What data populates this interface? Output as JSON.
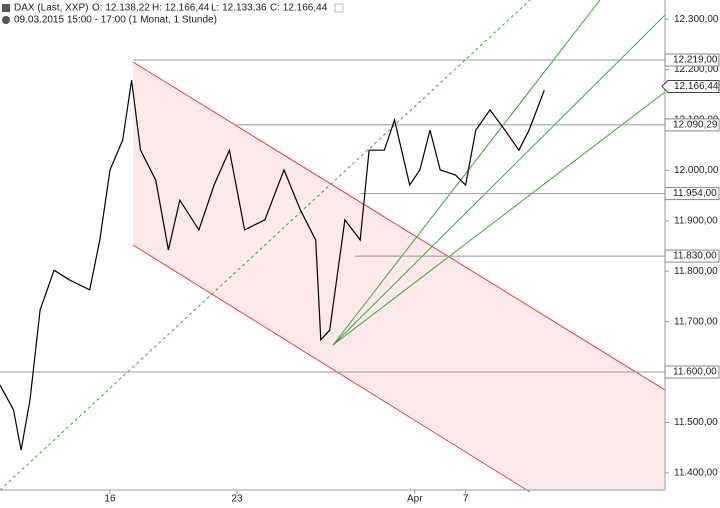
{
  "chart_data": {
    "type": "line",
    "title": "DAX (Last, XXP)",
    "quote": [
      "O: 12.138,22",
      "H: 12.166,44",
      "L: 12.133,36",
      "C: 12.166,44"
    ],
    "subtitle": "09.03.2015 15:00 - 17:00 (1 Monat, 1 Stunde)",
    "x": [
      -4.33,
      -3.8,
      -3.5,
      -3.15,
      -2.75,
      -2.2,
      -1.6,
      -0.8,
      -0.4,
      0,
      0.5,
      0.85,
      1.2,
      1.8,
      2.3,
      2.75,
      3.5,
      4.1,
      4.7,
      5.3,
      6.1,
      6.85,
      7.5,
      8.1,
      8.3,
      8.65,
      9.25,
      9.85,
      10.2,
      10.8,
      11.2,
      11.8,
      12.2,
      12.6,
      13,
      13.6,
      14,
      14.4,
      14.96,
      15.55,
      16.1,
      16.5,
      17.1
    ],
    "values": [
      11574,
      11525,
      11445,
      11545,
      11723,
      11802,
      11783,
      11763,
      11862,
      12001,
      12060,
      12179,
      12040,
      11981,
      11842,
      11941,
      11882,
      11971,
      12040,
      11882,
      11902,
      12001,
      11921,
      11862,
      11664,
      11683,
      11902,
      11862,
      12040,
      12040,
      12100,
      11971,
      12001,
      12080,
      12001,
      11991,
      11971,
      12080,
      12120,
      12080,
      12040,
      12080,
      12159
    ],
    "color": "#000000",
    "xlim": [
      -4.33,
      21.85
    ],
    "xticks": [
      {
        "value": 0,
        "label": "16"
      },
      {
        "value": 5,
        "label": "23"
      },
      {
        "value": 12,
        "label": "Apr"
      },
      {
        "value": 14,
        "label": "7"
      }
    ],
    "ylim": [
      11362,
      12338
    ],
    "yticks": [
      {
        "value": 12300,
        "label": "12.300,00"
      },
      {
        "value": 12200,
        "label": "12.200,00"
      },
      {
        "value": 12100,
        "label": "12.100,00"
      },
      {
        "value": 12000,
        "label": "12.000,00"
      },
      {
        "value": 11900,
        "label": "11.900,00"
      },
      {
        "value": 11800,
        "label": "11.800,00"
      },
      {
        "value": 11700,
        "label": "11.700,00"
      },
      {
        "value": 11500,
        "label": "11.500,00"
      },
      {
        "value": 11400,
        "label": "11.400,00"
      }
    ],
    "levels": [
      {
        "value": 12219,
        "label": "12.219,00"
      },
      {
        "value": 12090.29,
        "label": "12.090,29"
      },
      {
        "value": 11954,
        "label": "11.954,00"
      },
      {
        "value": 11830,
        "label": "11.830,00"
      },
      {
        "value": 11600,
        "label": "11.600,00"
      }
    ],
    "last": {
      "value": 12166.44,
      "label": "12.166,44"
    }
  }
}
